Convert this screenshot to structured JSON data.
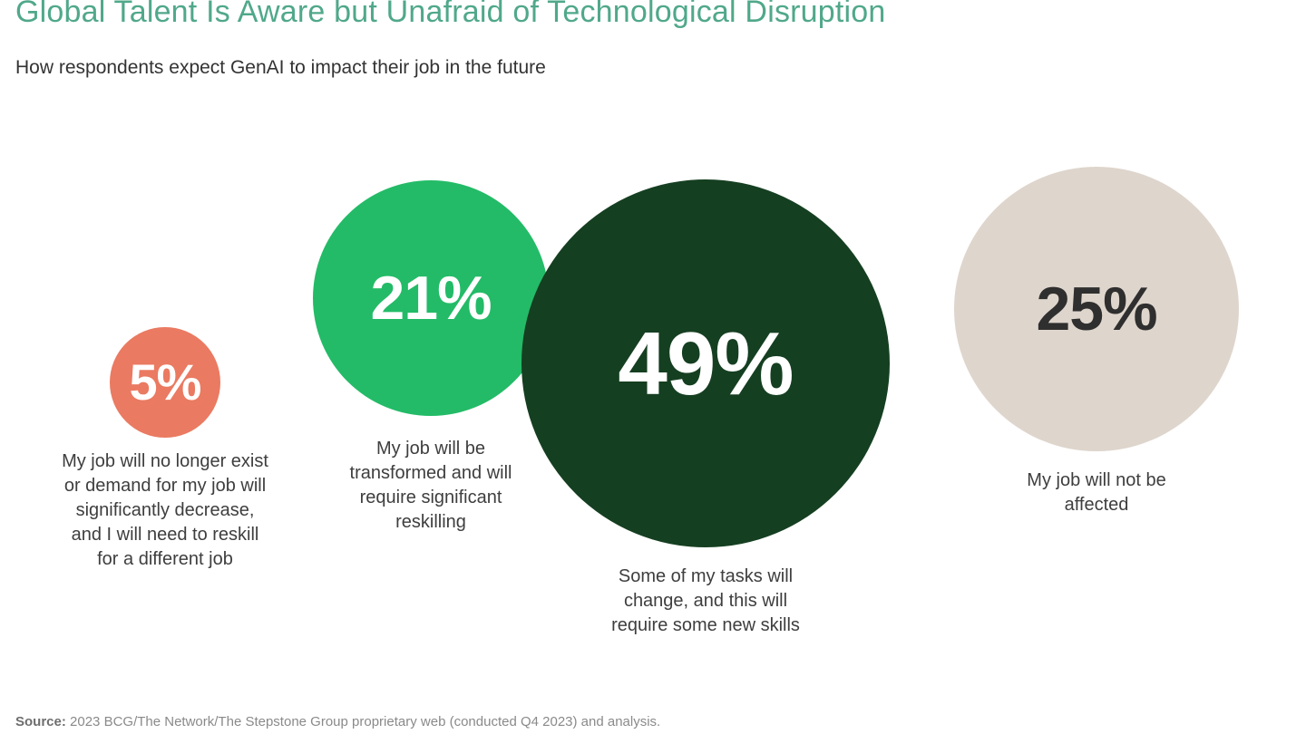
{
  "header": {
    "title": "Global Talent Is Aware but Unafraid of Technological Disruption",
    "subtitle": "How respondents expect GenAI to impact their job in the future"
  },
  "chart_data": {
    "type": "bubble",
    "title": "Global Talent Is Aware but Unafraid of Technological Disruption",
    "subtitle": "How respondents expect GenAI to impact their job in the future",
    "unit": "%",
    "layout_hint": "four circles in a horizontal row, circle area proportional to value, category label centered below each circle, no axes, no gridlines, no legend",
    "categories": [
      "My job will no longer exist or demand for my job will significantly decrease, and I will need to reskill for a different job",
      "My job will be transformed and will require significant reskilling",
      "Some of my tasks will change, and this will require some new skills",
      "My job will not be affected"
    ],
    "values": [
      5,
      21,
      49,
      25
    ],
    "points": [
      {
        "value": 5,
        "display": "5%",
        "label": "My job will no longer exist or demand for my job will significantly decrease, and I will need to reskill for a different job",
        "color": "#EA7A61",
        "value_text_color": "#FFFFFF"
      },
      {
        "value": 21,
        "display": "21%",
        "label": "My job will be transformed and will require significant reskilling",
        "color": "#23BB67",
        "value_text_color": "#FFFFFF"
      },
      {
        "value": 49,
        "display": "49%",
        "label": "Some of my tasks will change, and this will require some new skills",
        "color": "#153F21",
        "value_text_color": "#FFFFFF"
      },
      {
        "value": 25,
        "display": "25%",
        "label": "My job will not be affected",
        "color": "#DED5CC",
        "value_text_color": "#2F2F2F"
      }
    ]
  },
  "source": {
    "label": "Source:",
    "text": "2023 BCG/The Network/The Stepstone Group proprietary web (conducted Q4 2023) and analysis."
  },
  "colors": {
    "title": "#50A88A",
    "subtitle": "#333333",
    "label_text": "#3E3E3E",
    "source_label": "#6E6E6E",
    "source_text": "#8A8A8A",
    "background": "#FFFFFF"
  }
}
